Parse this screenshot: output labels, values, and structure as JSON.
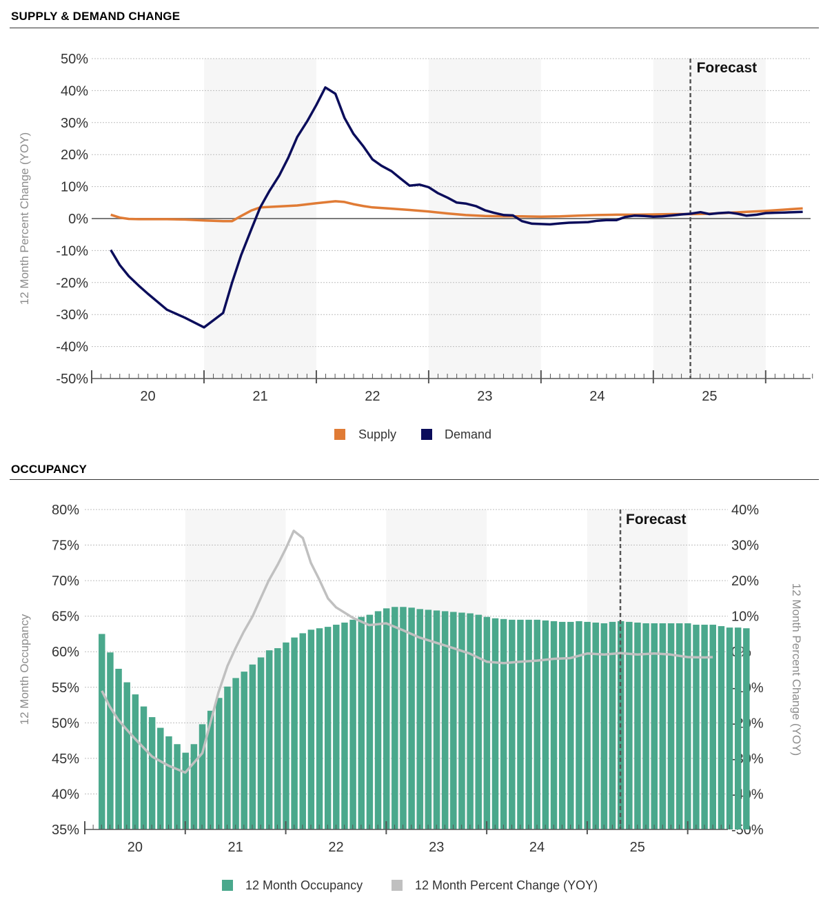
{
  "sections": {
    "supply_demand": {
      "title": "SUPPLY & DEMAND CHANGE"
    },
    "occupancy": {
      "title": "OCCUPANCY"
    }
  },
  "colors": {
    "supply": "#e07b35",
    "demand": "#0b0d5b",
    "occupancy_bar": "#4aa88c",
    "occupancy_yoy": "#c0c0c0",
    "shade": "#f6f6f6",
    "grid": "#bdbdbd",
    "axis_label": "#8c8c8c"
  },
  "chart_data": [
    {
      "type": "line",
      "ylabel": "12 Month Percent Change (YOY)",
      "ylim": [
        -50,
        50
      ],
      "yticks": [
        "-50%",
        "-40%",
        "-30%",
        "-20%",
        "-10%",
        "0%",
        "10%",
        "20%",
        "30%",
        "40%",
        "50%"
      ],
      "year_labels": [
        "20",
        "21",
        "22",
        "23",
        "24",
        "25"
      ],
      "x_range": [
        2019.5,
        2025.9
      ],
      "shaded_years": [
        2020.5,
        2022.5,
        2024.5
      ],
      "forecast_x": 2024.83,
      "forecast_label": "Forecast",
      "legend": [
        "Supply",
        "Demand"
      ],
      "legend_position": "bottom",
      "series": [
        {
          "name": "Supply",
          "x": [
            2019.67,
            2019.75,
            2019.83,
            2019.92,
            2020.0,
            2020.17,
            2020.33,
            2020.5,
            2020.67,
            2020.75,
            2020.83,
            2020.92,
            2021.0,
            2021.17,
            2021.33,
            2021.5,
            2021.67,
            2021.75,
            2021.83,
            2021.92,
            2022.0,
            2022.17,
            2022.33,
            2022.5,
            2022.67,
            2022.83,
            2023.0,
            2023.17,
            2023.33,
            2023.5,
            2023.67,
            2023.83,
            2024.0,
            2024.17,
            2024.33,
            2024.5,
            2024.67,
            2024.83,
            2025.0,
            2025.17,
            2025.33,
            2025.5,
            2025.67,
            2025.83
          ],
          "y": [
            1.2,
            0.3,
            -0.1,
            -0.2,
            -0.2,
            -0.2,
            -0.3,
            -0.6,
            -0.8,
            -0.8,
            0.8,
            2.5,
            3.5,
            3.8,
            4.1,
            4.8,
            5.4,
            5.2,
            4.5,
            3.9,
            3.5,
            3.1,
            2.7,
            2.2,
            1.6,
            1.1,
            0.8,
            0.7,
            0.7,
            0.6,
            0.7,
            0.9,
            1.1,
            1.2,
            1.2,
            1.3,
            1.4,
            1.4,
            1.5,
            1.8,
            2.1,
            2.4,
            2.8,
            3.2
          ]
        },
        {
          "name": "Demand",
          "x": [
            2019.67,
            2019.75,
            2019.83,
            2019.92,
            2020.0,
            2020.17,
            2020.33,
            2020.5,
            2020.67,
            2020.75,
            2020.83,
            2020.92,
            2021.0,
            2021.08,
            2021.17,
            2021.25,
            2021.33,
            2021.42,
            2021.5,
            2021.58,
            2021.67,
            2021.75,
            2021.83,
            2021.92,
            2022.0,
            2022.08,
            2022.17,
            2022.25,
            2022.33,
            2022.42,
            2022.5,
            2022.58,
            2022.67,
            2022.75,
            2022.83,
            2022.92,
            2023.0,
            2023.08,
            2023.17,
            2023.25,
            2023.33,
            2023.42,
            2023.5,
            2023.58,
            2023.67,
            2023.75,
            2023.83,
            2023.92,
            2024.0,
            2024.08,
            2024.17,
            2024.25,
            2024.33,
            2024.42,
            2024.5,
            2024.58,
            2024.67,
            2024.75,
            2024.83,
            2024.92,
            2025.0,
            2025.08,
            2025.17,
            2025.25,
            2025.33,
            2025.42,
            2025.5,
            2025.58,
            2025.67,
            2025.75,
            2025.83
          ],
          "y": [
            -9.8,
            -14.5,
            -18.0,
            -21.0,
            -23.5,
            -28.5,
            -31.0,
            -34.0,
            -29.5,
            -20.0,
            -11.5,
            -3.5,
            3.5,
            8.5,
            13.5,
            19.0,
            25.5,
            30.5,
            35.5,
            41.0,
            39.0,
            31.5,
            26.5,
            22.5,
            18.5,
            16.5,
            14.8,
            12.5,
            10.3,
            10.6,
            9.8,
            8.0,
            6.5,
            5.0,
            4.7,
            3.9,
            2.6,
            1.8,
            1.1,
            1.0,
            -0.8,
            -1.6,
            -1.7,
            -1.8,
            -1.5,
            -1.3,
            -1.2,
            -1.1,
            -0.7,
            -0.5,
            -0.5,
            0.5,
            0.9,
            0.8,
            0.6,
            0.7,
            1.0,
            1.3,
            1.5,
            2.0,
            1.4,
            1.7,
            1.9,
            1.5,
            0.9,
            1.2,
            1.7,
            1.8,
            1.9,
            2.0,
            2.1
          ]
        }
      ]
    },
    {
      "type": "bar",
      "ylabel": "12 Month Occupancy",
      "y2label": "12 Month Percent Change (YOY)",
      "ylim": [
        35,
        80
      ],
      "y2lim": [
        -50,
        40
      ],
      "yticks": [
        "35%",
        "40%",
        "45%",
        "50%",
        "55%",
        "60%",
        "65%",
        "70%",
        "75%",
        "80%"
      ],
      "y2ticks": [
        "-50%",
        "-40%",
        "-30%",
        "-20%",
        "-10%",
        "0%",
        "10%",
        "20%",
        "30%",
        "40%"
      ],
      "year_labels": [
        "20",
        "21",
        "22",
        "23",
        "24",
        "25"
      ],
      "x_range": [
        2019.5,
        2025.9
      ],
      "shaded_years": [
        2020.5,
        2022.5,
        2024.5
      ],
      "forecast_x": 2024.83,
      "forecast_label": "Forecast",
      "legend": [
        "12 Month Occupancy",
        "12 Month Percent Change (YOY)"
      ],
      "legend_position": "bottom",
      "series": [
        {
          "name": "12 Month Occupancy",
          "start_x": 2019.67,
          "step": 0.0833,
          "values": [
            62.5,
            59.9,
            57.6,
            55.7,
            54.0,
            52.3,
            50.8,
            49.3,
            48.1,
            47.0,
            45.8,
            47.0,
            49.8,
            51.7,
            53.5,
            55.1,
            56.3,
            57.2,
            58.2,
            59.2,
            60.2,
            60.5,
            61.3,
            62.0,
            62.6,
            63.1,
            63.3,
            63.5,
            63.8,
            64.1,
            64.5,
            64.9,
            65.2,
            65.7,
            66.1,
            66.3,
            66.3,
            66.2,
            66.0,
            65.9,
            65.8,
            65.7,
            65.6,
            65.5,
            65.4,
            65.2,
            64.9,
            64.7,
            64.6,
            64.5,
            64.5,
            64.5,
            64.5,
            64.4,
            64.3,
            64.2,
            64.2,
            64.3,
            64.2,
            64.1,
            64.0,
            64.2,
            64.3,
            64.2,
            64.1,
            64.0,
            64.0,
            64.0,
            64.0,
            64.0,
            64.0,
            63.8,
            63.8,
            63.8,
            63.6,
            63.4,
            63.4,
            63.3
          ]
        },
        {
          "name": "12 Month Percent Change (YOY)",
          "x": [
            2019.67,
            2019.75,
            2019.83,
            2019.92,
            2020.0,
            2020.17,
            2020.33,
            2020.5,
            2020.67,
            2020.75,
            2020.83,
            2020.92,
            2021.0,
            2021.08,
            2021.17,
            2021.25,
            2021.33,
            2021.42,
            2021.5,
            2021.58,
            2021.67,
            2021.75,
            2021.83,
            2021.92,
            2022.0,
            2022.17,
            2022.33,
            2022.5,
            2022.67,
            2022.83,
            2023.0,
            2023.17,
            2023.33,
            2023.5,
            2023.67,
            2023.83,
            2024.0,
            2024.17,
            2024.33,
            2024.5,
            2024.67,
            2024.83,
            2025.0,
            2025.17,
            2025.33,
            2025.5,
            2025.67,
            2025.75
          ],
          "y": [
            -11.0,
            -15.5,
            -19.0,
            -22.0,
            -24.5,
            -29.5,
            -32.0,
            -34.0,
            -28.5,
            -20.0,
            -11.5,
            -4.0,
            1.0,
            5.5,
            10.0,
            15.0,
            20.0,
            24.5,
            29.0,
            34.0,
            32.0,
            25.0,
            20.5,
            15.0,
            12.5,
            9.5,
            7.5,
            8.0,
            6.0,
            4.0,
            2.5,
            1.0,
            -0.5,
            -2.8,
            -3.2,
            -2.8,
            -2.5,
            -2.0,
            -1.8,
            -0.5,
            -0.8,
            -0.4,
            -0.8,
            -0.5,
            -0.8,
            -1.5,
            -1.6,
            -1.5
          ]
        }
      ]
    }
  ]
}
